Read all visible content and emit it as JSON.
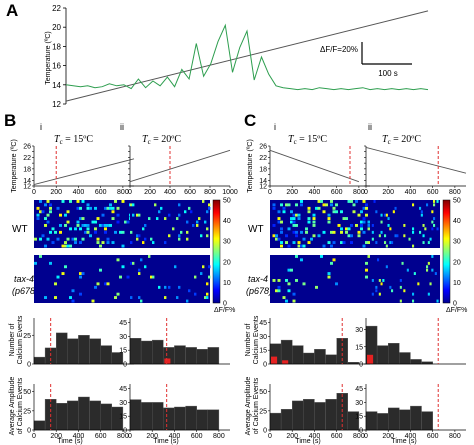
{
  "panel_letters": {
    "a": "A",
    "b": "B",
    "c": "C"
  },
  "panel_a": {
    "ylabel": "Temperature (ºC)",
    "yticks": [
      "12",
      "14",
      "16",
      "18",
      "20",
      "22"
    ],
    "ylim": [
      12,
      22
    ],
    "scale_bar": {
      "y_label": "ΔF/F=20%",
      "x_label": "100 s"
    },
    "colors": {
      "trace": "#2e9e4f",
      "temperature": "#555555"
    }
  },
  "sub_labels": {
    "i": "i",
    "ii": "ii"
  },
  "titles": {
    "c15": "T",
    "c15_sub": "c",
    "c15_val": " = 15ºC",
    "c20": "T",
    "c20_sub": "c",
    "c20_val": " = 20ºC"
  },
  "row_labels": {
    "wt": "WT",
    "mut1": "tax-4",
    "mut2": "(p678)"
  },
  "axis_labels": {
    "temp": "Temperature",
    "temp_unit": "(ºC)",
    "events1": "Number of",
    "events2": "Calcium Events",
    "amp1": "Average Amplitude",
    "amp2": "of Calcium Events",
    "time": "Time (s)"
  },
  "colorbar": {
    "ticks": [
      "0",
      "10",
      "20",
      "30",
      "40",
      "50"
    ],
    "label": "ΔF/F%",
    "range": [
      0,
      50
    ]
  },
  "ticks": {
    "temp_y": [
      "12",
      "14",
      "16",
      "18",
      "20",
      "22",
      "24",
      "26"
    ],
    "time_x": [
      "0",
      "200",
      "400",
      "600",
      "800"
    ],
    "time_x_b2": [
      "0",
      "200",
      "400",
      "600",
      "800",
      "1000"
    ],
    "hist_events_bi": [
      "0",
      "25"
    ],
    "hist_events_bii": [
      "0",
      "15",
      "30",
      "45"
    ],
    "hist_events_ci": [
      "0",
      "15",
      "30",
      "45"
    ],
    "hist_events_cii": [
      "0",
      "15",
      "30"
    ],
    "hist_amp_bi": [
      "0",
      "25",
      "50"
    ],
    "hist_amp_bii": [
      "0",
      "15",
      "30",
      "45"
    ],
    "hist_amp_ci": [
      "0",
      "25",
      "50"
    ],
    "hist_amp_cii": [
      "0",
      "15",
      "30",
      "45"
    ]
  },
  "chart_data": [
    {
      "id": "A",
      "type": "line",
      "ylabel": "Temperature (ºC)",
      "ylim": [
        12,
        22
      ],
      "series": [
        {
          "role": "temperature",
          "x": [
            0,
            1
          ],
          "values": [
            12.3,
            21.7
          ]
        },
        {
          "role": "calcium",
          "x": [
            0.0,
            0.02,
            0.04,
            0.06,
            0.08,
            0.1,
            0.12,
            0.14,
            0.16,
            0.18,
            0.2,
            0.22,
            0.24,
            0.26,
            0.28,
            0.3,
            0.32,
            0.34,
            0.36,
            0.38,
            0.4,
            0.42,
            0.44,
            0.46,
            0.48,
            0.5,
            0.52,
            0.54,
            0.56,
            0.58,
            0.6,
            0.62,
            0.64,
            0.66,
            0.68,
            0.7,
            0.72,
            0.74,
            0.76,
            0.78,
            0.8,
            0.82,
            0.84,
            0.86,
            0.88,
            0.9,
            0.92,
            0.94,
            0.96,
            0.98,
            1.0
          ],
          "values": [
            14.0,
            13.9,
            13.8,
            13.9,
            13.7,
            13.8,
            14.1,
            13.9,
            14.0,
            13.6,
            14.6,
            13.7,
            14.4,
            13.9,
            14.8,
            13.8,
            15.6,
            14.6,
            18.3,
            14.9,
            16.2,
            18.5,
            20.2,
            15.3,
            17.9,
            19.6,
            14.5,
            16.9,
            15.1,
            13.9,
            13.7,
            13.6,
            13.5,
            13.6,
            13.5,
            13.7,
            13.6,
            13.5,
            13.6,
            13.5,
            13.6,
            13.7,
            13.5,
            13.6,
            13.5,
            13.6,
            13.5,
            13.6,
            13.5,
            13.6,
            13.5
          ]
        }
      ]
    },
    {
      "id": "B-i-temp",
      "type": "line",
      "xlim": [
        0,
        900
      ],
      "ylim": [
        12,
        26
      ],
      "series": [
        {
          "x": [
            0,
            900
          ],
          "values": [
            12.5,
            21.5
          ]
        }
      ],
      "marker_x": 200
    },
    {
      "id": "B-ii-temp",
      "type": "line",
      "xlim": [
        0,
        1000
      ],
      "ylim": [
        12,
        26
      ],
      "series": [
        {
          "x": [
            0,
            1000
          ],
          "values": [
            13.5,
            24.5
          ]
        }
      ],
      "marker_x": 400
    },
    {
      "id": "C-i-temp",
      "type": "line",
      "xlim": [
        0,
        900
      ],
      "ylim": [
        12,
        26
      ],
      "series": [
        {
          "x": [
            0,
            800
          ],
          "values": [
            24.5,
            13.5
          ]
        }
      ],
      "marker_x": 720
    },
    {
      "id": "C-ii-temp",
      "type": "line",
      "xlim": [
        0,
        900
      ],
      "ylim": [
        12,
        26
      ],
      "series": [
        {
          "x": [
            0,
            900
          ],
          "values": [
            25.5,
            16.5
          ]
        }
      ],
      "marker_x": 650
    },
    {
      "id": "B-i-events",
      "type": "bar",
      "xlim": [
        0,
        900
      ],
      "ylim": [
        0,
        40
      ],
      "categories": [
        50,
        150,
        250,
        350,
        450,
        550,
        650,
        750
      ],
      "values": [
        6,
        14,
        27,
        22,
        25,
        22,
        16,
        10
      ],
      "red_values": [
        0,
        0,
        0,
        0,
        0,
        0,
        0,
        0
      ],
      "marker_x": 150
    },
    {
      "id": "B-ii-events",
      "type": "bar",
      "xlim": [
        0,
        900
      ],
      "ylim": [
        0,
        50
      ],
      "categories": [
        50,
        150,
        250,
        350,
        450,
        550,
        650,
        750
      ],
      "values": [
        28,
        25,
        26,
        18,
        20,
        18,
        16,
        18
      ],
      "red_values": [
        0,
        0,
        0,
        6,
        0,
        0,
        0,
        0
      ],
      "marker_x": 330
    },
    {
      "id": "C-i-events",
      "type": "bar",
      "xlim": [
        0,
        900
      ],
      "ylim": [
        0,
        50
      ],
      "categories": [
        50,
        150,
        250,
        350,
        450,
        550,
        650,
        750
      ],
      "values": [
        22,
        26,
        20,
        12,
        16,
        10,
        28,
        2
      ],
      "red_values": [
        8,
        4,
        0,
        0,
        0,
        0,
        0,
        0
      ],
      "marker_x": 650
    },
    {
      "id": "C-ii-events",
      "type": "bar",
      "xlim": [
        0,
        900
      ],
      "ylim": [
        0,
        40
      ],
      "categories": [
        50,
        150,
        250,
        350,
        450,
        550
      ],
      "values": [
        33,
        16,
        18,
        10,
        4,
        2
      ],
      "red_values": [
        8,
        0,
        0,
        0,
        0,
        0
      ],
      "marker_x": 650
    },
    {
      "id": "B-i-amp",
      "type": "bar",
      "xlim": [
        0,
        900
      ],
      "ylim": [
        0,
        60
      ],
      "categories": [
        50,
        150,
        250,
        350,
        450,
        550,
        650,
        750
      ],
      "values": [
        12,
        40,
        35,
        38,
        43,
        38,
        34,
        30
      ],
      "marker_x": 150
    },
    {
      "id": "B-ii-amp",
      "type": "bar",
      "xlim": [
        0,
        900
      ],
      "ylim": [
        0,
        50
      ],
      "categories": [
        50,
        150,
        250,
        350,
        450,
        550,
        650,
        750
      ],
      "values": [
        33,
        30,
        30,
        24,
        25,
        26,
        22,
        22
      ],
      "marker_x": 330
    },
    {
      "id": "C-i-amp",
      "type": "bar",
      "xlim": [
        0,
        900
      ],
      "ylim": [
        0,
        60
      ],
      "categories": [
        50,
        150,
        250,
        350,
        450,
        550,
        650,
        750
      ],
      "values": [
        22,
        27,
        38,
        40,
        36,
        40,
        48,
        24
      ],
      "marker_x": 650
    },
    {
      "id": "C-ii-amp",
      "type": "bar",
      "xlim": [
        0,
        900
      ],
      "ylim": [
        0,
        50
      ],
      "categories": [
        50,
        150,
        250,
        350,
        450,
        550
      ],
      "values": [
        20,
        18,
        24,
        22,
        26,
        20
      ],
      "marker_x": 650
    }
  ]
}
